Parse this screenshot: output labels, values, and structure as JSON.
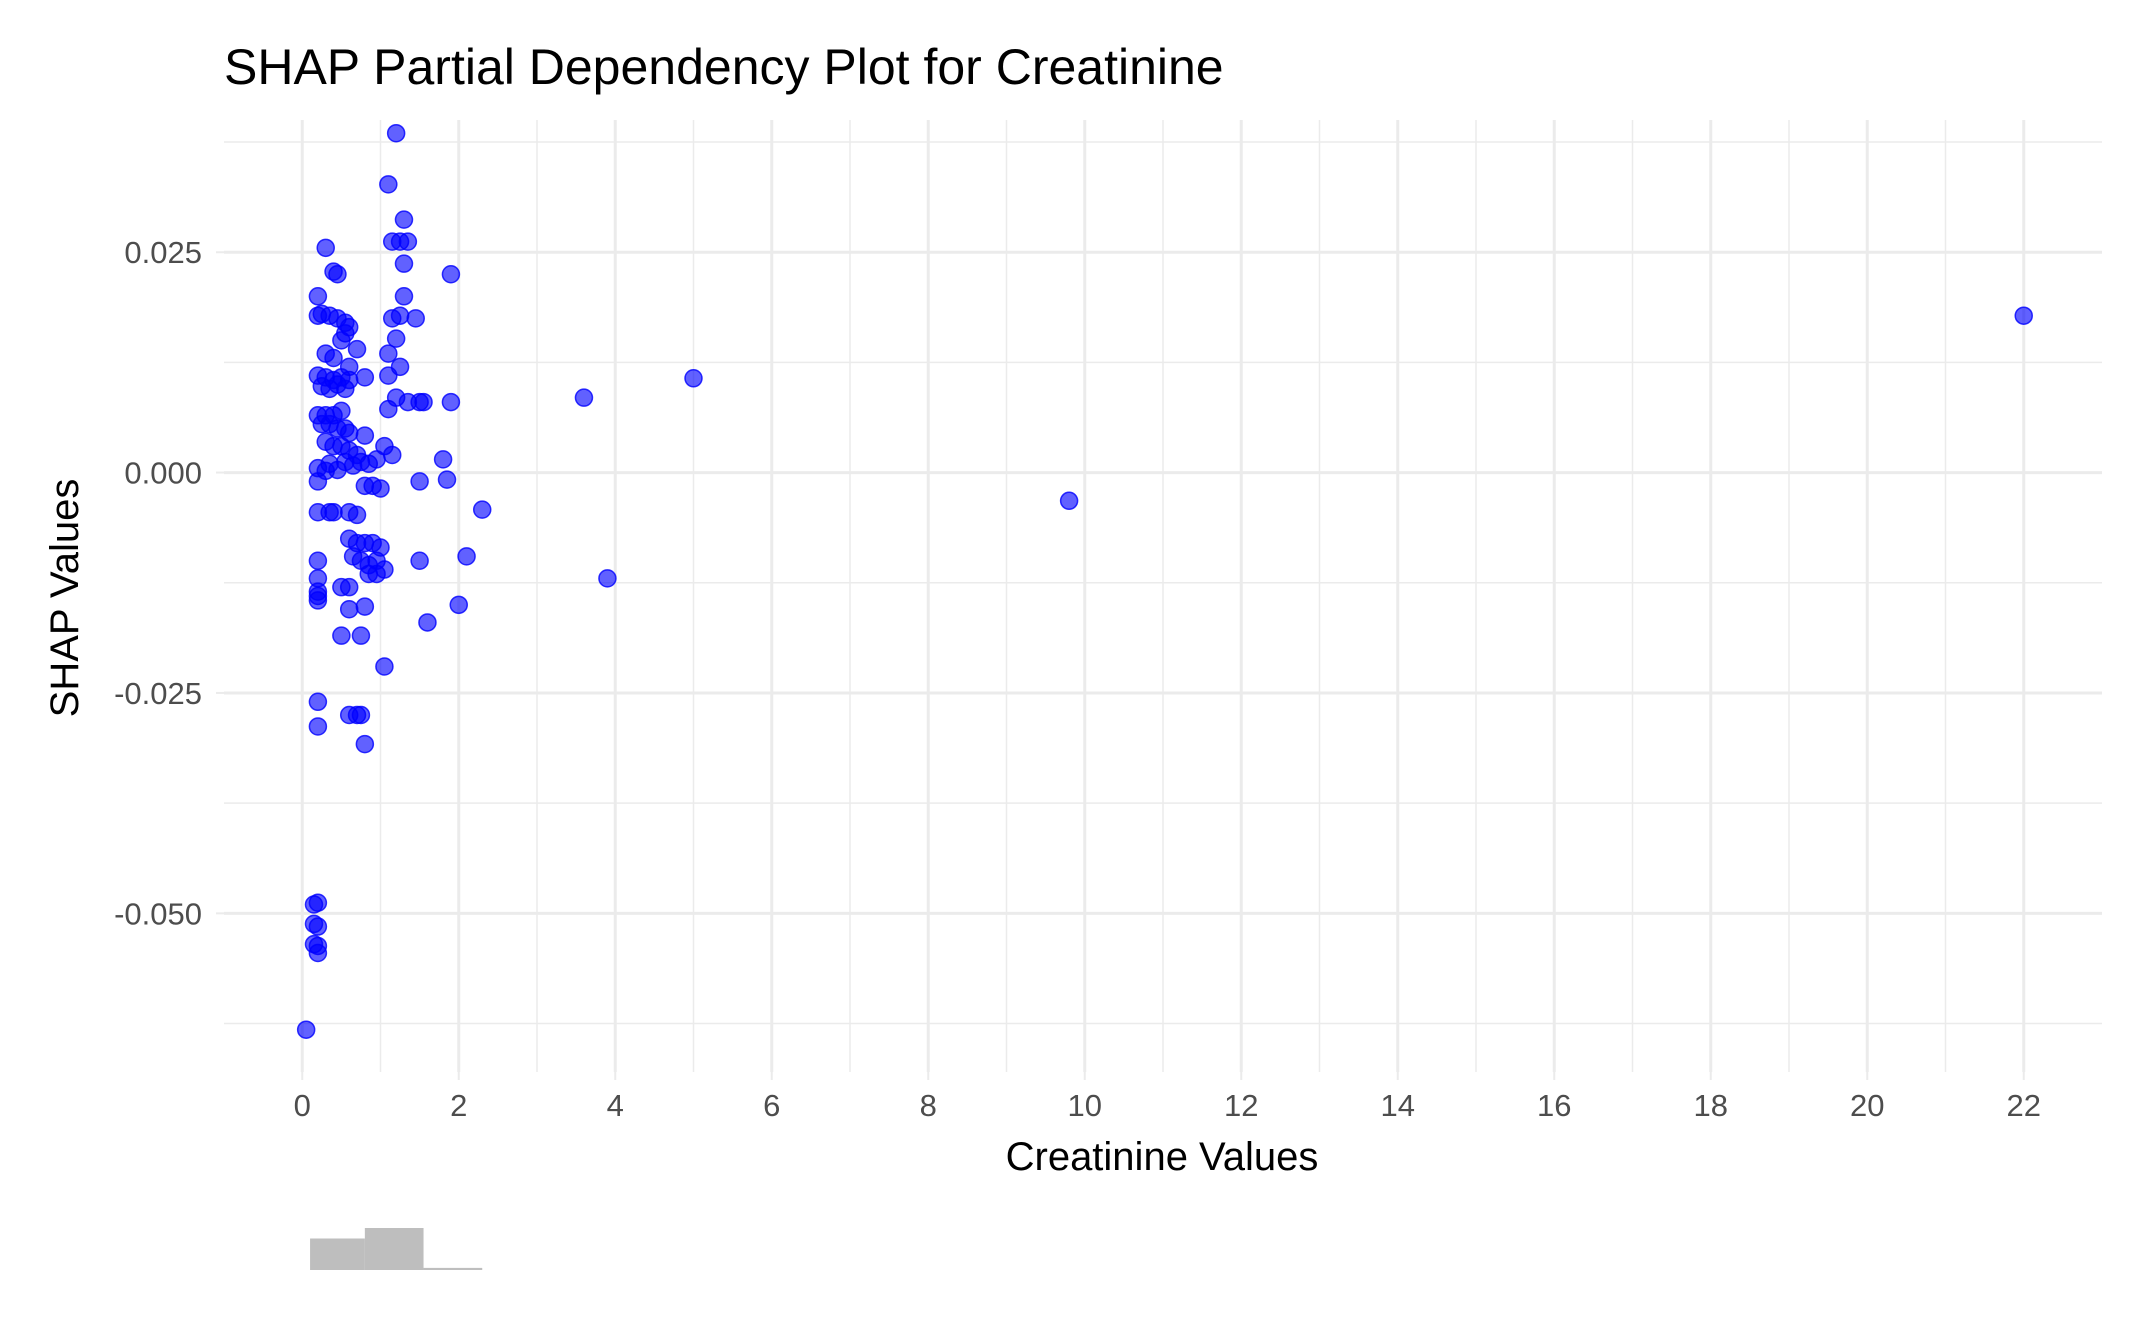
{
  "chart_data": {
    "type": "scatter",
    "title": "SHAP Partial Dependency Plot for Creatinine",
    "xlabel": "Creatinine Values",
    "ylabel": "SHAP Values",
    "xlim": [
      -1.0,
      23.0
    ],
    "ylim": [
      -0.068,
      0.04
    ],
    "x_ticks": [
      0,
      2,
      4,
      6,
      8,
      10,
      12,
      14,
      16,
      18,
      20,
      22
    ],
    "x_tick_labels": [
      "0",
      "2",
      "4",
      "6",
      "8",
      "10",
      "12",
      "14",
      "16",
      "18",
      "20",
      "22"
    ],
    "y_ticks": [
      -0.05,
      -0.025,
      0,
      0.025
    ],
    "y_tick_labels": [
      "-0.050",
      "-0.025",
      "0.000",
      "0.025"
    ],
    "grid": true,
    "point_color": "#0000ff",
    "point_alpha": 0.6,
    "series": [
      {
        "points": [
          [
            1.2,
            0.0385
          ],
          [
            1.1,
            0.0327
          ],
          [
            1.3,
            0.0287
          ],
          [
            1.15,
            0.0262
          ],
          [
            1.25,
            0.0262
          ],
          [
            1.35,
            0.0262
          ],
          [
            1.3,
            0.0237
          ],
          [
            0.3,
            0.0255
          ],
          [
            0.4,
            0.0228
          ],
          [
            0.45,
            0.0225
          ],
          [
            1.9,
            0.0225
          ],
          [
            0.2,
            0.02
          ],
          [
            1.3,
            0.02
          ],
          [
            0.2,
            0.0178
          ],
          [
            0.25,
            0.018
          ],
          [
            0.35,
            0.0178
          ],
          [
            0.45,
            0.0175
          ],
          [
            0.55,
            0.017
          ],
          [
            0.6,
            0.0165
          ],
          [
            0.55,
            0.0158
          ],
          [
            0.5,
            0.015
          ],
          [
            1.15,
            0.0175
          ],
          [
            1.25,
            0.0178
          ],
          [
            1.45,
            0.0175
          ],
          [
            1.2,
            0.0152
          ],
          [
            0.7,
            0.014
          ],
          [
            0.3,
            0.0135
          ],
          [
            0.4,
            0.013
          ],
          [
            1.1,
            0.0135
          ],
          [
            0.6,
            0.012
          ],
          [
            1.25,
            0.012
          ],
          [
            0.2,
            0.011
          ],
          [
            0.3,
            0.0108
          ],
          [
            0.4,
            0.0105
          ],
          [
            0.5,
            0.0108
          ],
          [
            0.6,
            0.0105
          ],
          [
            0.8,
            0.0108
          ],
          [
            1.1,
            0.011
          ],
          [
            0.25,
            0.0098
          ],
          [
            0.35,
            0.0095
          ],
          [
            0.45,
            0.01
          ],
          [
            0.55,
            0.0095
          ],
          [
            1.2,
            0.0085
          ],
          [
            1.35,
            0.008
          ],
          [
            1.5,
            0.008
          ],
          [
            1.55,
            0.008
          ],
          [
            1.9,
            0.008
          ],
          [
            1.1,
            0.0072
          ],
          [
            0.2,
            0.0065
          ],
          [
            0.3,
            0.0065
          ],
          [
            0.4,
            0.0065
          ],
          [
            0.5,
            0.007
          ],
          [
            0.25,
            0.0055
          ],
          [
            0.35,
            0.0055
          ],
          [
            0.45,
            0.005
          ],
          [
            0.55,
            0.005
          ],
          [
            0.6,
            0.0045
          ],
          [
            0.8,
            0.0042
          ],
          [
            0.3,
            0.0035
          ],
          [
            0.4,
            0.003
          ],
          [
            0.5,
            0.003
          ],
          [
            0.6,
            0.0025
          ],
          [
            0.7,
            0.002
          ],
          [
            1.05,
            0.003
          ],
          [
            1.15,
            0.002
          ],
          [
            0.35,
            0.001
          ],
          [
            0.55,
            0.0012
          ],
          [
            0.75,
            0.0012
          ],
          [
            0.85,
            0.001
          ],
          [
            0.95,
            0.0015
          ],
          [
            1.8,
            0.0015
          ],
          [
            0.2,
            0.0005
          ],
          [
            0.3,
            0.0002
          ],
          [
            0.45,
            0.0003
          ],
          [
            0.65,
            0.0008
          ],
          [
            0.2,
            -0.001
          ],
          [
            0.8,
            -0.0015
          ],
          [
            0.9,
            -0.0015
          ],
          [
            1.0,
            -0.0018
          ],
          [
            1.5,
            -0.001
          ],
          [
            1.85,
            -0.0008
          ],
          [
            0.2,
            -0.0045
          ],
          [
            0.35,
            -0.0045
          ],
          [
            0.4,
            -0.0045
          ],
          [
            0.6,
            -0.0045
          ],
          [
            0.7,
            -0.0048
          ],
          [
            2.3,
            -0.0042
          ],
          [
            0.6,
            -0.0075
          ],
          [
            0.7,
            -0.008
          ],
          [
            0.8,
            -0.008
          ],
          [
            0.9,
            -0.008
          ],
          [
            1.0,
            -0.0085
          ],
          [
            0.65,
            -0.0095
          ],
          [
            0.75,
            -0.01
          ],
          [
            0.85,
            -0.0105
          ],
          [
            0.95,
            -0.01
          ],
          [
            1.05,
            -0.011
          ],
          [
            1.5,
            -0.01
          ],
          [
            2.1,
            -0.0095
          ],
          [
            0.2,
            -0.01
          ],
          [
            0.2,
            -0.012
          ],
          [
            0.85,
            -0.0115
          ],
          [
            0.95,
            -0.0115
          ],
          [
            0.2,
            -0.0135
          ],
          [
            0.2,
            -0.014
          ],
          [
            0.5,
            -0.013
          ],
          [
            0.6,
            -0.013
          ],
          [
            0.2,
            -0.0145
          ],
          [
            0.6,
            -0.0155
          ],
          [
            0.8,
            -0.0152
          ],
          [
            2.0,
            -0.015
          ],
          [
            1.6,
            -0.017
          ],
          [
            0.5,
            -0.0185
          ],
          [
            0.75,
            -0.0185
          ],
          [
            1.05,
            -0.022
          ],
          [
            0.2,
            -0.026
          ],
          [
            0.2,
            -0.0288
          ],
          [
            0.6,
            -0.0275
          ],
          [
            0.7,
            -0.0275
          ],
          [
            0.75,
            -0.0275
          ],
          [
            0.8,
            -0.0308
          ],
          [
            0.15,
            -0.049
          ],
          [
            0.2,
            -0.0488
          ],
          [
            0.15,
            -0.0512
          ],
          [
            0.2,
            -0.0515
          ],
          [
            0.15,
            -0.0535
          ],
          [
            0.2,
            -0.0537
          ],
          [
            0.2,
            -0.0545
          ],
          [
            0.05,
            -0.0632
          ],
          [
            3.6,
            0.0085
          ],
          [
            5.0,
            0.0107
          ],
          [
            3.9,
            -0.012
          ],
          [
            9.8,
            -0.0032
          ],
          [
            22.0,
            0.0178
          ]
        ]
      }
    ],
    "marginal_histogram": {
      "bin_edges": [
        0.1,
        0.8,
        1.55,
        2.3
      ],
      "relative_heights": [
        0.75,
        1.0,
        0.05
      ]
    }
  }
}
